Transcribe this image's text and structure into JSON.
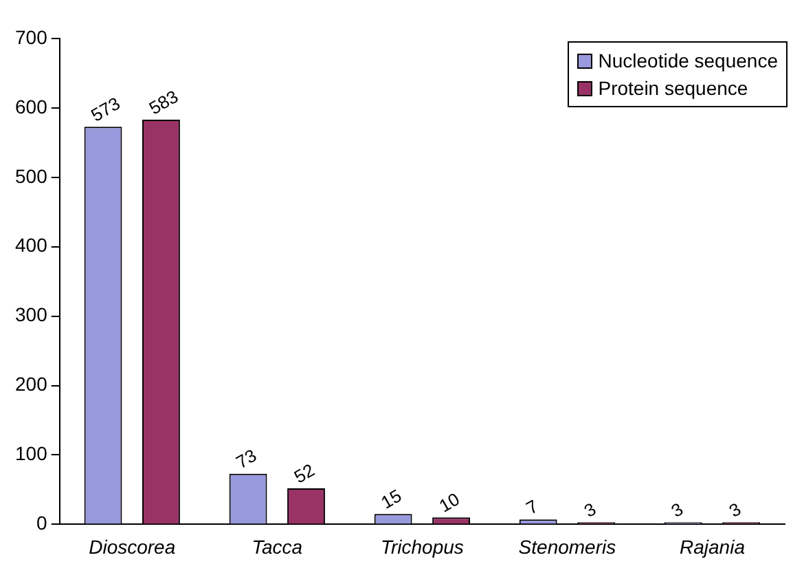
{
  "chart_data": {
    "type": "bar",
    "categories": [
      "Dioscorea",
      "Tacca",
      "Trichopus",
      "Stenomeris",
      "Rajania"
    ],
    "series": [
      {
        "name": "Nucleotide sequence",
        "color": "#9999dd",
        "values": [
          573,
          73,
          15,
          7,
          3
        ]
      },
      {
        "name": "Protein sequence",
        "color": "#993366",
        "values": [
          583,
          52,
          10,
          3,
          3
        ]
      }
    ],
    "ylim": [
      0,
      700
    ],
    "yticks": [
      0,
      100,
      200,
      300,
      400,
      500,
      600,
      700
    ],
    "data_labels": true,
    "legend": "top right",
    "grid": false
  }
}
